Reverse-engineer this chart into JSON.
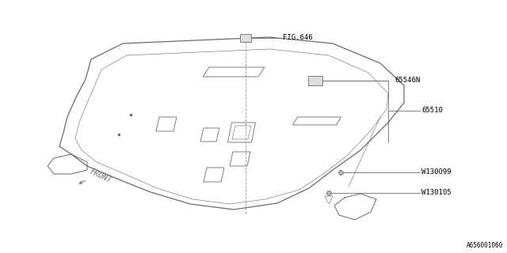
{
  "bg_color": "#ffffff",
  "line_color": "#6a6a6a",
  "line_width": 0.9,
  "thin_line": 0.6,
  "labels": {
    "FIG646": "FIG.646",
    "part65546N": "65546N",
    "part65510": "65510",
    "partW130099": "W130099",
    "partW130105": "W130105",
    "front": "FRONT",
    "diagram_id": "A656001060"
  },
  "label_fontsize": 6.5,
  "small_fontsize": 5.5
}
